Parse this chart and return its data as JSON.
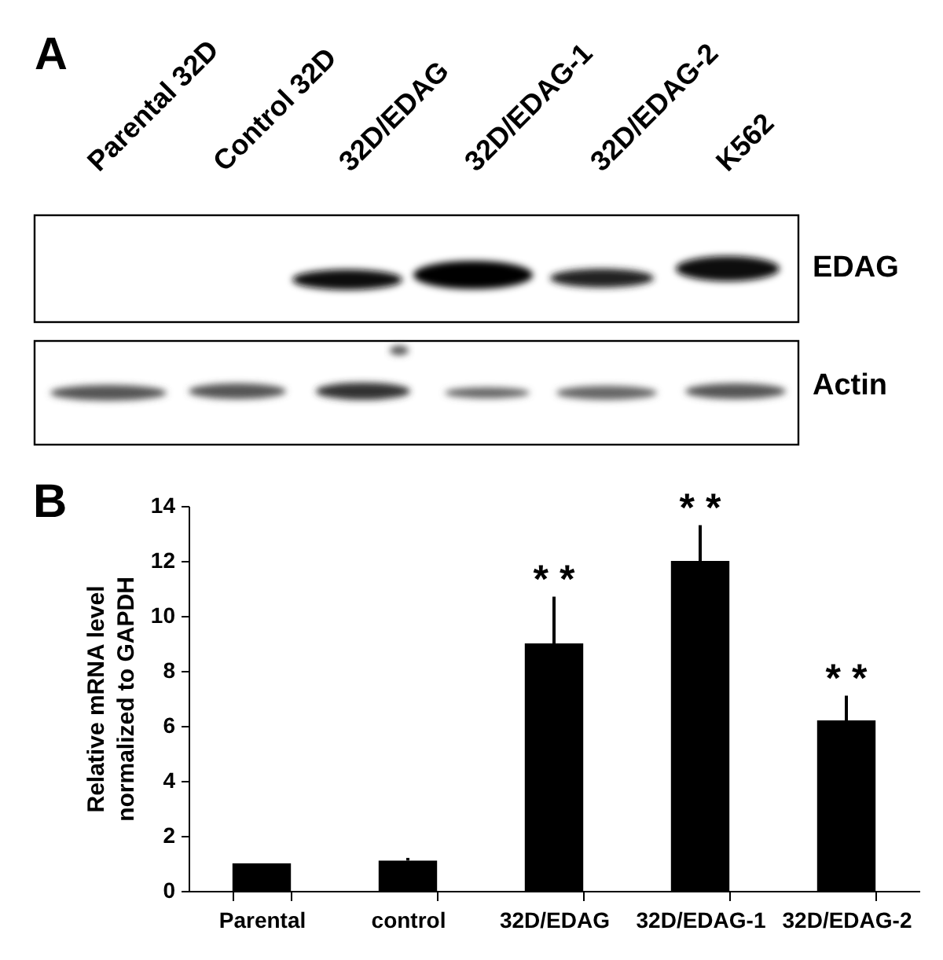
{
  "chart_data": {
    "type": "bar",
    "categories": [
      "Parental",
      "control",
      "32D/EDAG",
      "32D/EDAG-1",
      "32D/EDAG-2"
    ],
    "values": [
      1.0,
      1.1,
      9.0,
      12.0,
      6.2
    ],
    "color": "#000000",
    "errors": [
      null,
      [
        1.1,
        1.2
      ],
      [
        9.0,
        10.7
      ],
      [
        12.0,
        13.3
      ],
      [
        6.2,
        7.1
      ]
    ],
    "ylabel": "Relative mRNA level normalized to GAPDH",
    "ylim": [
      0,
      14
    ],
    "yticks": [
      0,
      2,
      4,
      6,
      8,
      10,
      12,
      14
    ],
    "annotations": [
      "A",
      "Parental 32D",
      "Control 32D",
      "32D/EDAG",
      "32D/EDAG-1",
      "32D/EDAG-2",
      "K562",
      "EDAG",
      "Actin",
      "B",
      {
        "text": "* *",
        "x": "32D/EDAG",
        "y": 10.7
      },
      {
        "text": "* *",
        "x": "32D/EDAG-1",
        "y": 13.3
      },
      {
        "text": "* *",
        "x": "32D/EDAG-2",
        "y": 7.1
      }
    ]
  }
}
